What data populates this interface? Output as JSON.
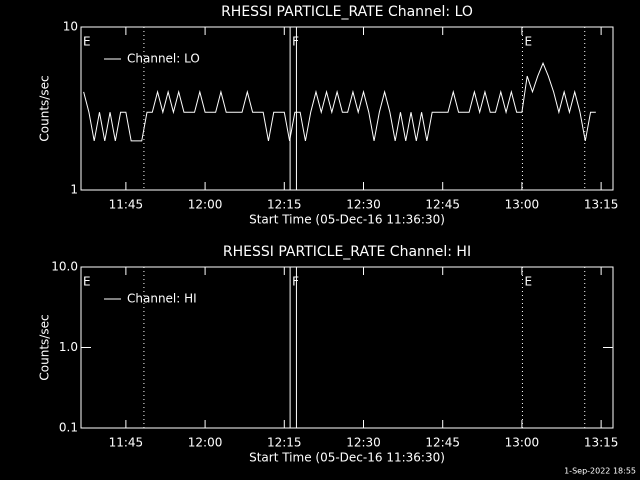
{
  "chart_data": [
    {
      "type": "line",
      "title": "RHESSI PARTICLE_RATE Channel: LO",
      "xlabel": "Start Time (05-Dec-16 11:36:30)",
      "ylabel": "Counts/sec",
      "ylog": true,
      "ylim": [
        1,
        10
      ],
      "yticks": [
        1,
        10
      ],
      "xlim": [
        "11:36:30",
        "13:17:15"
      ],
      "xticks": [
        "11:45",
        "12:00",
        "12:15",
        "12:30",
        "12:45",
        "13:00",
        "13:15"
      ],
      "legend": "upper left",
      "x": [
        "11:37",
        "11:38",
        "11:39",
        "11:40",
        "11:41",
        "11:42",
        "11:43",
        "11:44",
        "11:45",
        "11:46",
        "11:47",
        "11:48",
        "11:49",
        "11:50",
        "11:51",
        "11:52",
        "11:53",
        "11:54",
        "11:55",
        "11:56",
        "11:57",
        "11:58",
        "11:59",
        "12:00",
        "12:01",
        "12:02",
        "12:03",
        "12:04",
        "12:05",
        "12:06",
        "12:07",
        "12:08",
        "12:09",
        "12:10",
        "12:11",
        "12:12",
        "12:13",
        "12:14",
        "12:15",
        "12:16",
        "12:17",
        "12:18",
        "12:19",
        "12:20",
        "12:21",
        "12:22",
        "12:23",
        "12:24",
        "12:25",
        "12:26",
        "12:27",
        "12:28",
        "12:29",
        "12:30",
        "12:31",
        "12:32",
        "12:33",
        "12:34",
        "12:35",
        "12:36",
        "12:37",
        "12:38",
        "12:39",
        "12:40",
        "12:41",
        "12:42",
        "12:43",
        "12:44",
        "12:45",
        "12:46",
        "12:47",
        "12:48",
        "12:49",
        "12:50",
        "12:51",
        "12:52",
        "12:53",
        "12:54",
        "12:55",
        "12:56",
        "12:57",
        "12:58",
        "12:59",
        "13:00",
        "13:01",
        "13:02",
        "13:03",
        "13:04",
        "13:05",
        "13:06",
        "13:07",
        "13:08",
        "13:09",
        "13:10",
        "13:11",
        "13:12",
        "13:13",
        "13:14"
      ],
      "series": [
        {
          "name": "Channel: LO",
          "color": "#ffffff",
          "values": [
            4,
            3,
            2,
            3,
            2,
            3,
            2,
            3,
            3,
            2,
            2,
            2,
            3,
            3,
            4,
            3,
            4,
            3,
            4,
            3,
            3,
            3,
            4,
            3,
            3,
            3,
            4,
            3,
            3,
            3,
            3,
            4,
            3,
            3,
            3,
            2,
            3,
            3,
            3,
            2,
            3,
            3,
            2,
            3,
            4,
            3,
            4,
            3,
            4,
            3,
            3,
            4,
            3,
            4,
            3,
            2,
            3,
            4,
            3,
            2,
            3,
            2,
            3,
            2,
            3,
            2,
            3,
            3,
            3,
            3,
            4,
            3,
            3,
            3,
            4,
            3,
            4,
            3,
            3,
            4,
            3,
            4,
            3,
            3,
            5,
            4,
            5,
            6,
            5,
            4,
            3,
            4,
            3,
            4,
            3,
            2,
            3,
            3
          ]
        }
      ],
      "vlines": [
        {
          "x": "11:48:25",
          "style": "dotted"
        },
        {
          "x": "12:16:06",
          "style": "solid"
        },
        {
          "x": "12:17:18",
          "style": "solid"
        },
        {
          "x": "13:00:06",
          "style": "dotted"
        },
        {
          "x": "13:11:54",
          "style": "dotted"
        }
      ],
      "flags": [
        {
          "label": "E",
          "x": "11:36:30"
        },
        {
          "label": "F",
          "x": "12:16:06"
        },
        {
          "label": "E",
          "x": "13:00:06"
        }
      ]
    },
    {
      "type": "line",
      "title": "RHESSI PARTICLE_RATE Channel: HI",
      "xlabel": "Start Time (05-Dec-16 11:36:30)",
      "ylabel": "Counts/sec",
      "ylog": true,
      "ylim": [
        0.1,
        10
      ],
      "yticks": [
        0.1,
        {
          "value": 1,
          "label": "1.0"
        },
        {
          "value": 10,
          "label": "10.0"
        }
      ],
      "xlim": [
        "11:36:30",
        "13:17:15"
      ],
      "xticks": [
        "11:45",
        "12:00",
        "12:15",
        "12:30",
        "12:45",
        "13:00",
        "13:15"
      ],
      "legend": "upper left",
      "x": [],
      "series": [
        {
          "name": "Channel: HI",
          "color": "#ffffff",
          "values": []
        }
      ],
      "vlines": [
        {
          "x": "11:48:25",
          "style": "dotted"
        },
        {
          "x": "12:16:06",
          "style": "solid"
        },
        {
          "x": "12:17:18",
          "style": "solid"
        },
        {
          "x": "13:00:06",
          "style": "dotted"
        },
        {
          "x": "13:11:54",
          "style": "dotted"
        }
      ],
      "flags": [
        {
          "label": "E",
          "x": "11:36:30"
        },
        {
          "label": "F",
          "x": "12:16:06"
        },
        {
          "label": "E",
          "x": "13:00:06"
        }
      ]
    }
  ],
  "timestamp": "1-Sep-2022 18:55"
}
